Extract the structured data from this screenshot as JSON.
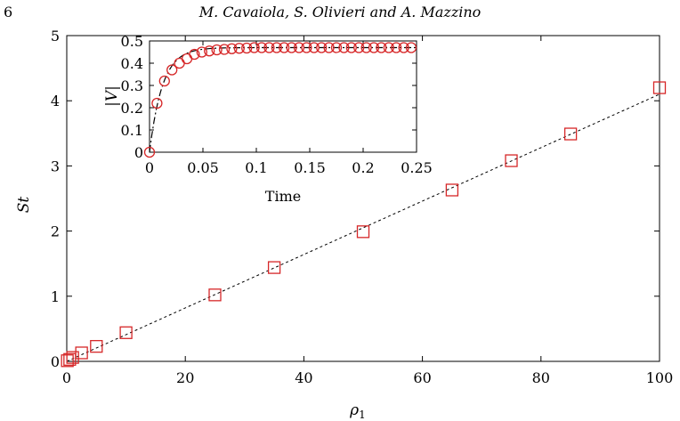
{
  "header": {
    "page_number": "6",
    "authors": "M. Cavaiola, S. Olivieri and A. Mazzino"
  },
  "colors": {
    "marker": "#d62728",
    "fit_line": "#000000",
    "axis": "#000000"
  },
  "chart_data": [
    {
      "type": "scatter",
      "xlabel": "ρ",
      "xlabel_sub": "1",
      "ylabel": "St",
      "xlim": [
        0,
        100
      ],
      "ylim": [
        0,
        5
      ],
      "xticks": [
        0,
        20,
        40,
        60,
        80,
        100
      ],
      "yticks": [
        0,
        1,
        2,
        3,
        4,
        5
      ],
      "marker": "square",
      "series": [
        {
          "x": [
            0.1,
            0.5,
            1,
            2.5,
            5,
            10,
            25,
            35,
            50,
            65,
            75,
            85,
            100
          ],
          "y": [
            0.01,
            0.03,
            0.06,
            0.13,
            0.23,
            0.44,
            1.02,
            1.44,
            1.99,
            2.63,
            3.08,
            3.49,
            4.2
          ]
        }
      ],
      "fit_line": {
        "style": "dashed",
        "x": [
          0,
          100
        ],
        "y": [
          0,
          4.1
        ]
      },
      "grid": false,
      "legend": "none"
    },
    {
      "type": "scatter",
      "xlabel": "Time",
      "ylabel": "|V|",
      "xlim": [
        0,
        0.25
      ],
      "ylim": [
        0,
        0.5
      ],
      "xticks": [
        0,
        0.05,
        0.1,
        0.15,
        0.2,
        0.25
      ],
      "xtick_labels": [
        "0",
        "0.05",
        "0.1",
        "0.15",
        "0.2",
        "0.25"
      ],
      "yticks": [
        0,
        0.1,
        0.2,
        0.3,
        0.4,
        0.5
      ],
      "ytick_labels": [
        "0",
        "0.1",
        "0.2",
        "0.3",
        "0.4",
        "0.5"
      ],
      "marker": "circle",
      "series": [
        {
          "x": [
            0,
            0.007,
            0.014,
            0.021,
            0.028,
            0.035,
            0.042,
            0.049,
            0.056,
            0.063,
            0.07,
            0.077,
            0.084,
            0.091,
            0.098,
            0.105,
            0.112,
            0.119,
            0.126,
            0.133,
            0.14,
            0.147,
            0.154,
            0.161,
            0.168,
            0.175,
            0.182,
            0.189,
            0.196,
            0.203,
            0.21,
            0.217,
            0.224,
            0.231,
            0.238,
            0.245
          ],
          "y": [
            0,
            0.22,
            0.32,
            0.37,
            0.4,
            0.42,
            0.44,
            0.45,
            0.455,
            0.46,
            0.462,
            0.465,
            0.467,
            0.468,
            0.47,
            0.47,
            0.47,
            0.47,
            0.47,
            0.47,
            0.47,
            0.47,
            0.47,
            0.47,
            0.47,
            0.47,
            0.47,
            0.47,
            0.47,
            0.47,
            0.47,
            0.47,
            0.47,
            0.47,
            0.47,
            0.47
          ]
        }
      ],
      "fit_curve": {
        "style": "dash-dot",
        "plateau": 0.47,
        "timescale": 0.012
      },
      "grid": false,
      "legend": "none"
    }
  ]
}
